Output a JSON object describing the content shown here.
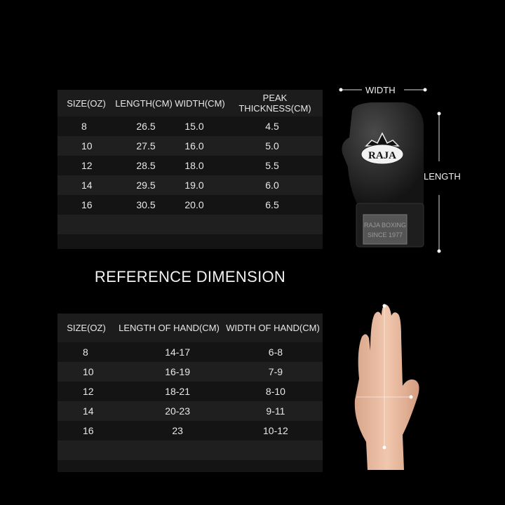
{
  "glove_table": {
    "headers": [
      "SIZE(OZ)",
      "LENGTH(CM)",
      "WIDTH(CM)",
      "PEAK THICKNESS(CM)"
    ],
    "rows": [
      [
        "8",
        "26.5",
        "15.0",
        "4.5"
      ],
      [
        "10",
        "27.5",
        "16.0",
        "5.0"
      ],
      [
        "12",
        "28.5",
        "18.0",
        "5.5"
      ],
      [
        "14",
        "29.5",
        "19.0",
        "6.0"
      ],
      [
        "16",
        "30.5",
        "20.0",
        "6.5"
      ]
    ]
  },
  "title": "REFERENCE DIMENSION",
  "hand_table": {
    "headers": [
      "SIZE(OZ)",
      "LENGTH OF HAND(CM)",
      "WIDTH OF HAND(CM)"
    ],
    "rows": [
      [
        "8",
        "14-17",
        "6-8"
      ],
      [
        "10",
        "16-19",
        "7-9"
      ],
      [
        "12",
        "18-21",
        "8-10"
      ],
      [
        "14",
        "20-23",
        "9-11"
      ],
      [
        "16",
        "23",
        "10-12"
      ]
    ]
  },
  "glove_image": {
    "width_label": "WIDTH",
    "length_label": "LENGTH",
    "logo_text": "RAJA",
    "patch_text": "RAJA BOXING SINCE 1977"
  },
  "colors": {
    "background": "#000000",
    "table_dark": "#141414",
    "table_light": "#1f1f1f",
    "text": "#e8e8e8"
  }
}
